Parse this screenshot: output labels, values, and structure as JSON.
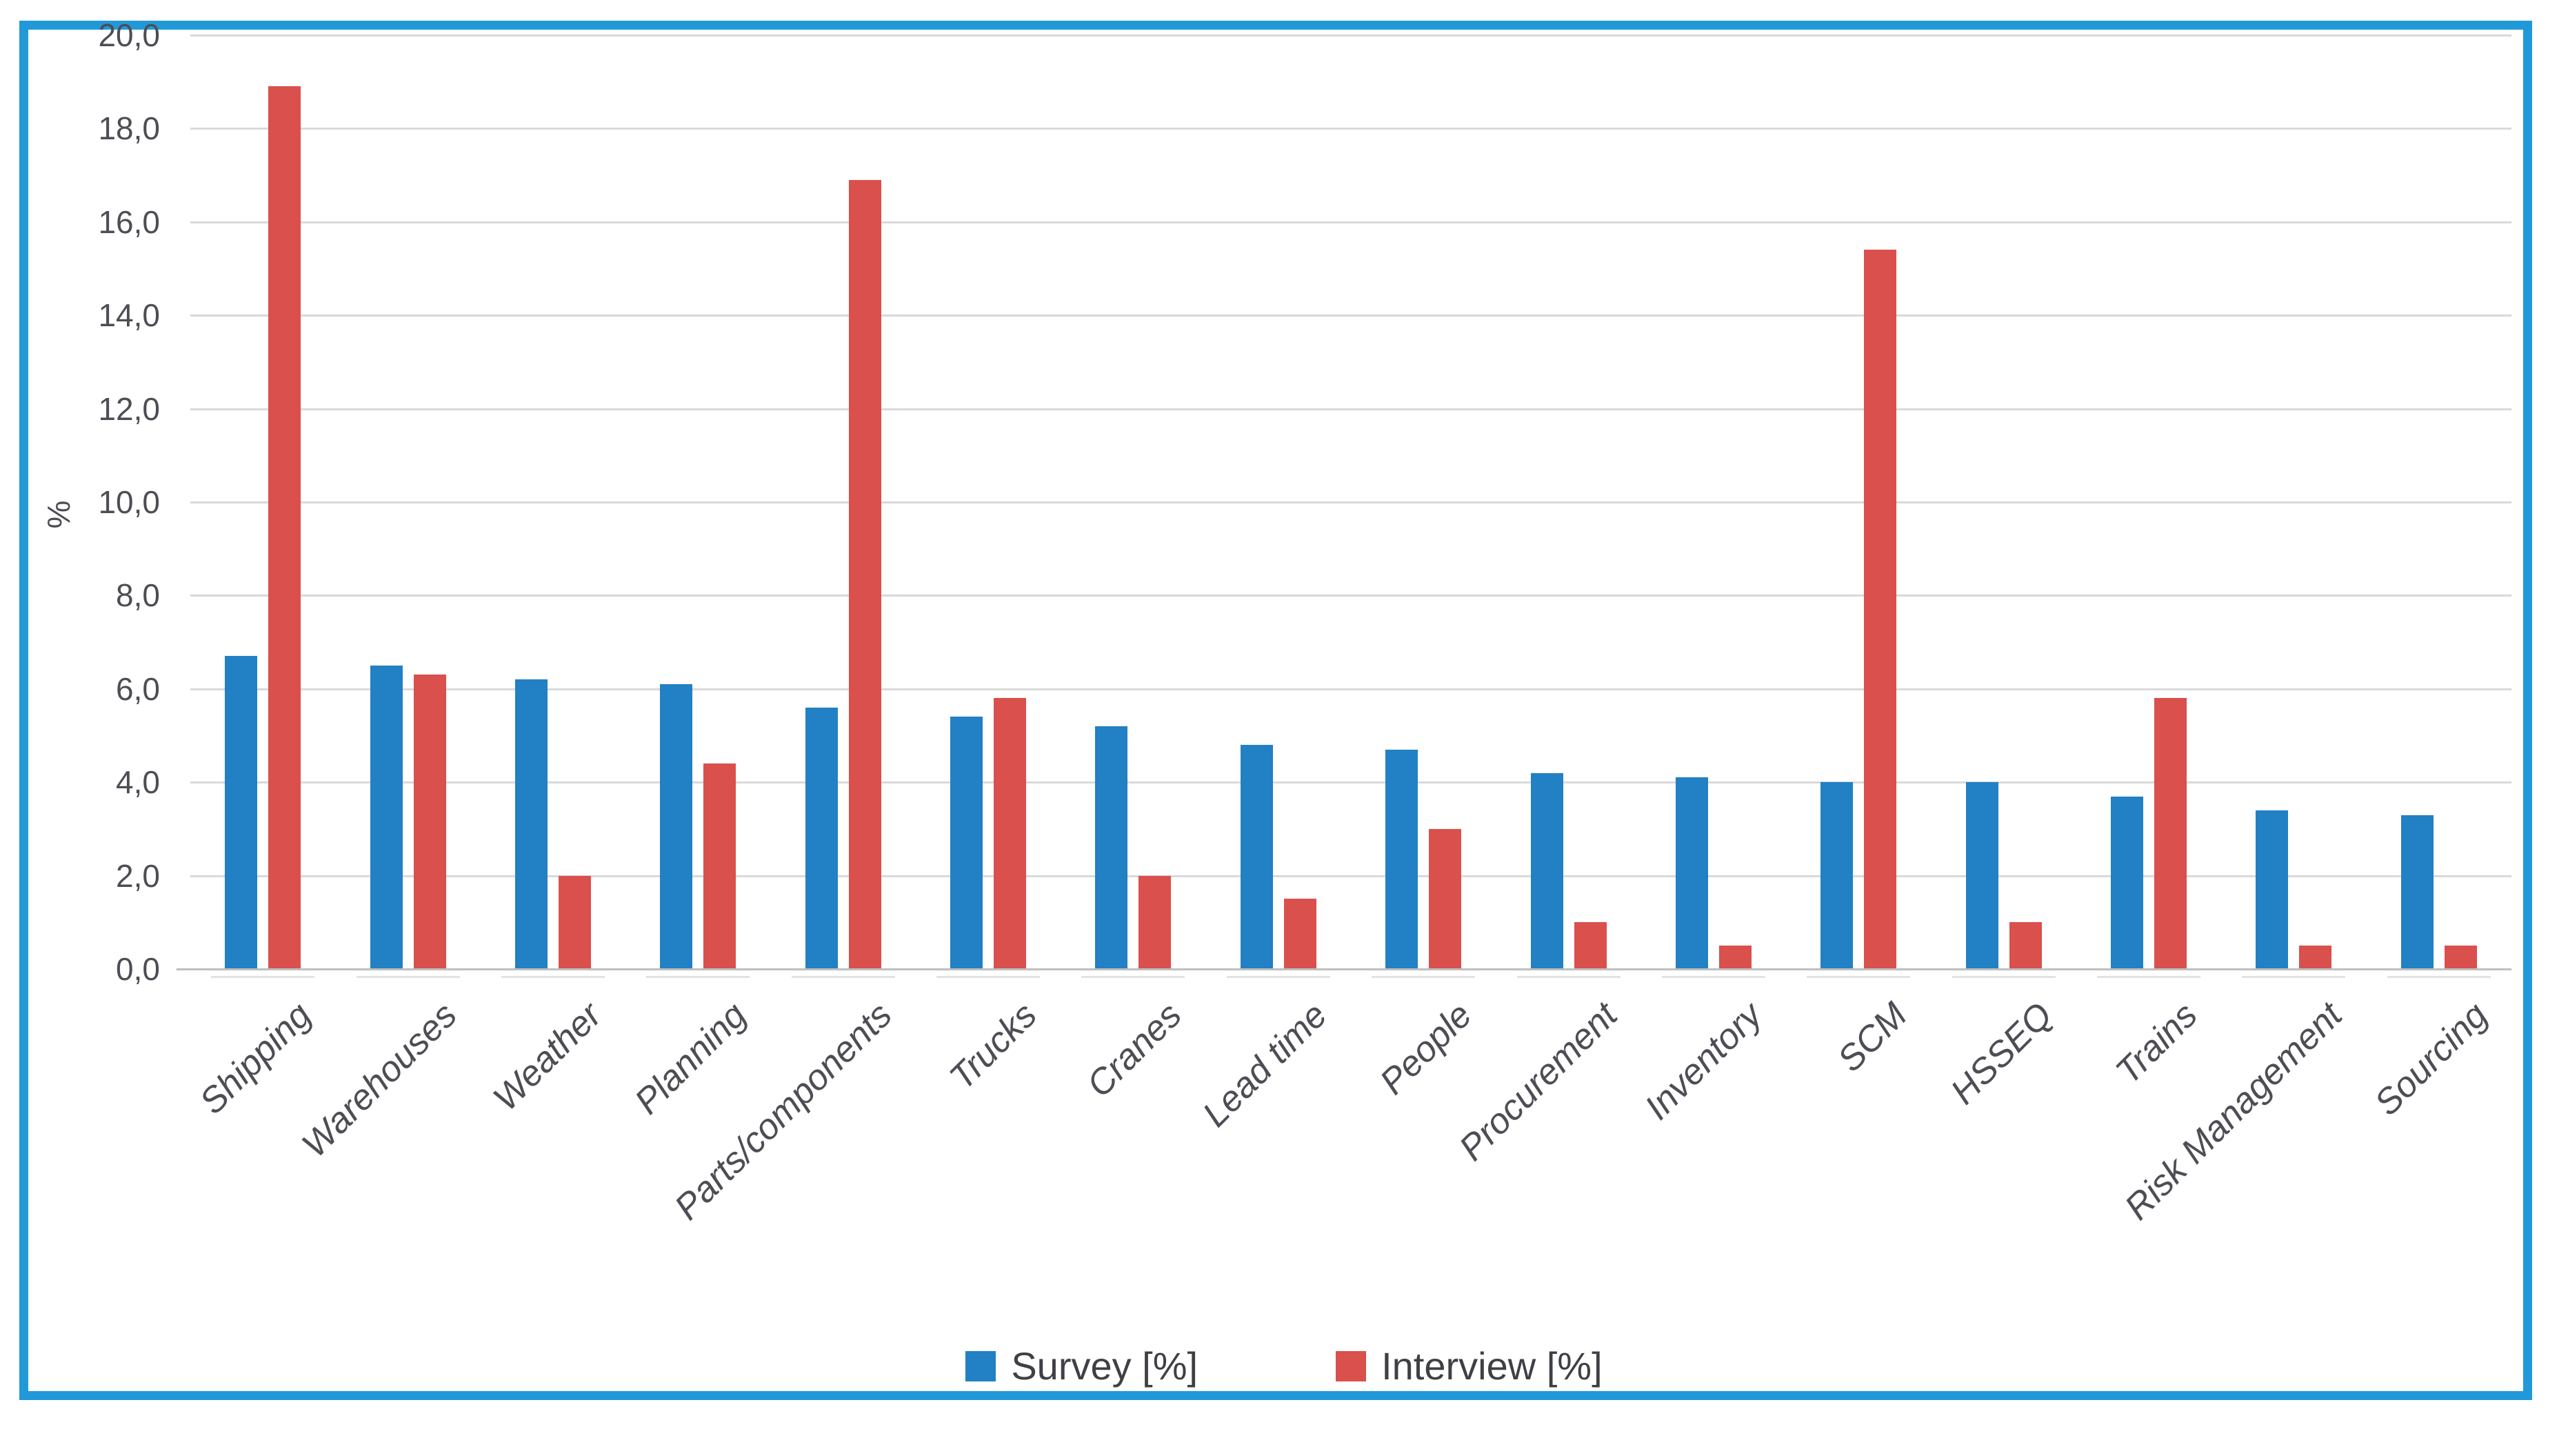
{
  "frame": {
    "border_color": "#2199D8"
  },
  "y_axis": {
    "label": "%",
    "ticks": [
      "20,0",
      "18,0",
      "16,0",
      "14,0",
      "12,0",
      "10,0",
      "8,0",
      "6,0",
      "4,0",
      "2,0",
      "0,0"
    ]
  },
  "chart_data": {
    "type": "bar",
    "title": "",
    "xlabel": "",
    "ylabel": "%",
    "ylim": [
      0,
      20
    ],
    "ytick_step": 2,
    "decimal_separator": ",",
    "grid": true,
    "legend_position": "bottom",
    "categories": [
      "Shipping",
      "Warehouses",
      "Weather",
      "Planning",
      "Parts/components",
      "Trucks",
      "Cranes",
      "Lead time",
      "People",
      "Procurement",
      "Inventory",
      "SCM",
      "HSSEQ",
      "Trains",
      "Risk Management",
      "Sourcing"
    ],
    "series": [
      {
        "name": "Survey [%]",
        "color": "#2280C4",
        "values": [
          6.7,
          6.5,
          6.2,
          6.1,
          5.6,
          5.4,
          5.2,
          4.8,
          4.7,
          4.2,
          4.1,
          4.0,
          4.0,
          3.7,
          3.4,
          3.3
        ]
      },
      {
        "name": "Interview [%]",
        "color": "#D9504C",
        "values": [
          18.9,
          6.3,
          2.0,
          4.4,
          16.9,
          5.8,
          2.0,
          1.5,
          3.0,
          1.0,
          0.5,
          15.4,
          1.0,
          5.8,
          0.5,
          0.5
        ]
      }
    ]
  }
}
